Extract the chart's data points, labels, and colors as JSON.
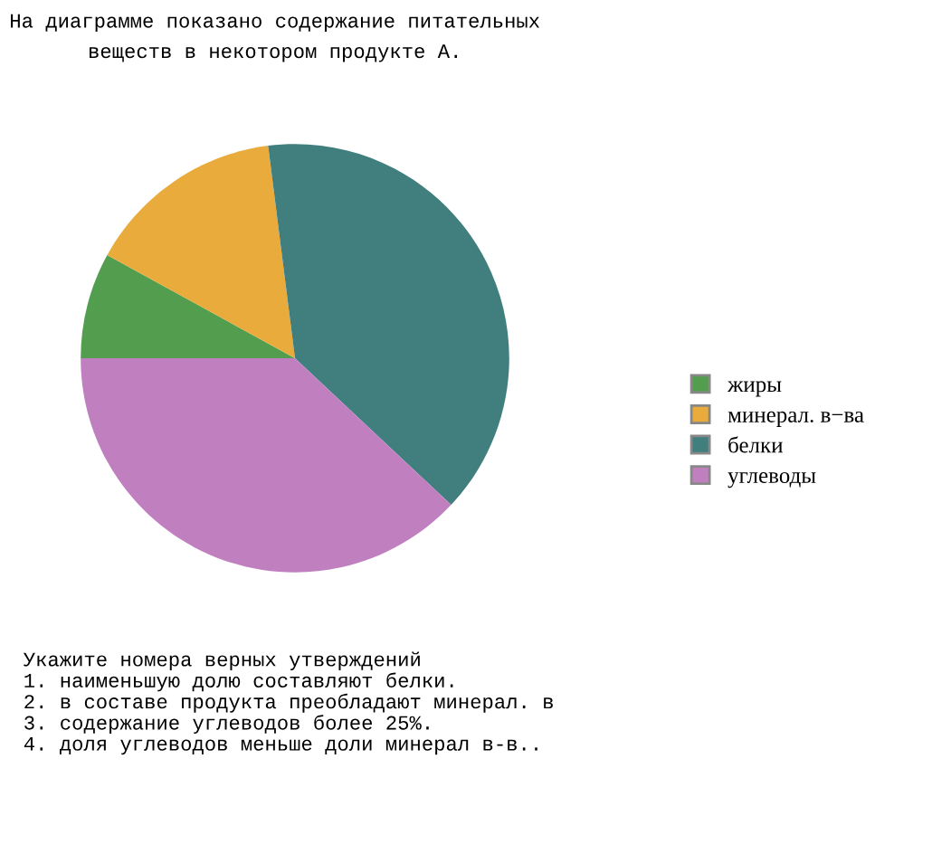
{
  "chart_data": {
    "type": "pie",
    "title": "На диаграмме показано содержание питательных\nвеществ в некотором продукте А.",
    "categories": [
      "жиры",
      "минерал. в−ва",
      "белки",
      "углеводы"
    ],
    "values": [
      8,
      15,
      39,
      38
    ],
    "colors": [
      "#539e4e",
      "#e8ab3c",
      "#417f7f",
      "#c080c0"
    ],
    "legend": "right",
    "annotations": [
      "Укажите номера верных утверждений\n1. наименьшую долю составляют белки.\n2. в составе продукта преобладают минерал. в\n3. содержание углеводов более 25%.\n4. доля углеводов меньше доли минерал в-в.."
    ]
  }
}
